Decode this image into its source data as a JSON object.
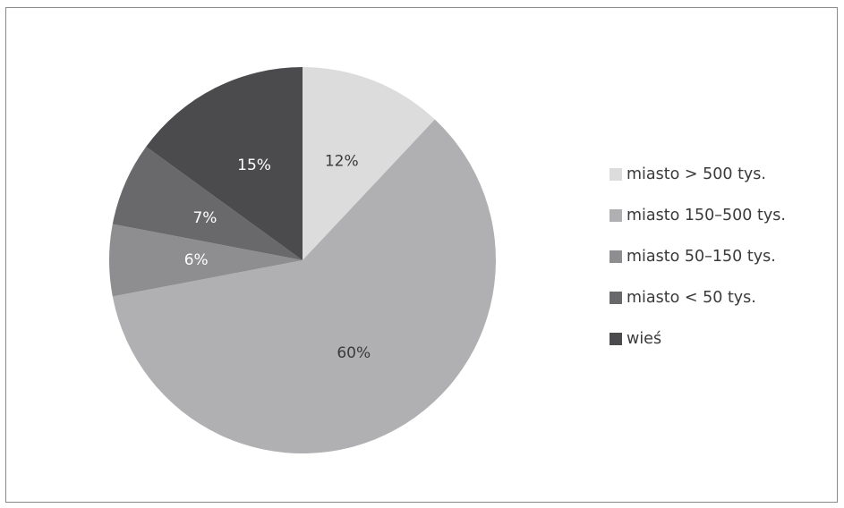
{
  "chart_data": {
    "type": "pie",
    "start": "12 o'clock",
    "direction": "clockwise",
    "legend_position": "right",
    "slices": [
      {
        "label": "miasto > 500 tys.",
        "value": 12,
        "value_label": "12%",
        "color": "#dcdcdd",
        "label_color": "#3a3a3c"
      },
      {
        "label": "miasto 150–500 tys.",
        "value": 60,
        "value_label": "60%",
        "color": "#b0b0b2",
        "label_color": "#3a3a3c"
      },
      {
        "label": "miasto 50–150 tys.",
        "value": 6,
        "value_label": "6%",
        "color": "#8e8e90",
        "label_color": "#ffffff"
      },
      {
        "label": "miasto < 50 tys.",
        "value": 7,
        "value_label": "7%",
        "color": "#69696b",
        "label_color": "#ffffff"
      },
      {
        "label": "wieś",
        "value": 15,
        "value_label": "15%",
        "color": "#4b4b4d",
        "label_color": "#ffffff"
      }
    ]
  }
}
